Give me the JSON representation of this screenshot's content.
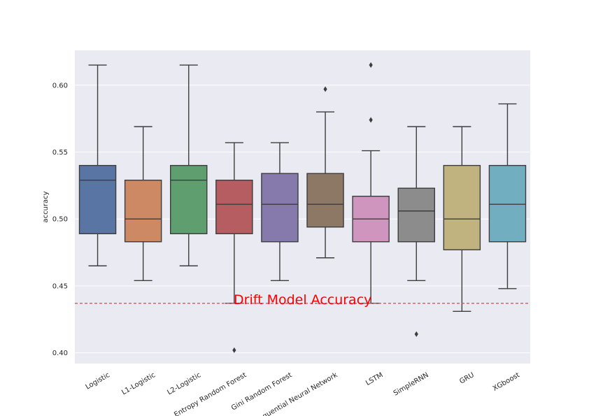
{
  "chart_data": {
    "type": "box",
    "ylabel": "accuracy",
    "ylim": [
      0.392,
      0.626
    ],
    "yticks": [
      {
        "value": 0.4,
        "label": "0.40"
      },
      {
        "value": 0.45,
        "label": "0.45"
      },
      {
        "value": 0.5,
        "label": "0.50"
      },
      {
        "value": 0.55,
        "label": "0.55"
      },
      {
        "value": 0.6,
        "label": "0.60"
      }
    ],
    "grid": true,
    "background": "#eaeaf2",
    "categories": [
      "Logistic",
      "L1-Logistic",
      "L2-Logistic",
      "Entropy Random Forest",
      "Gini Random Forest",
      "Sequential Neural Network",
      "LSTM",
      "SimpleRNN",
      "GRU",
      "XGboost"
    ],
    "boxes": [
      {
        "name": "Logistic",
        "color": "#5975a4",
        "whisker_low": 0.465,
        "q1": 0.489,
        "median": 0.529,
        "q3": 0.54,
        "whisker_high": 0.615,
        "outliers": []
      },
      {
        "name": "L1-Logistic",
        "color": "#cc8963",
        "whisker_low": 0.454,
        "q1": 0.483,
        "median": 0.5,
        "q3": 0.529,
        "whisker_high": 0.569,
        "outliers": []
      },
      {
        "name": "L2-Logistic",
        "color": "#5f9e6e",
        "whisker_low": 0.465,
        "q1": 0.489,
        "median": 0.529,
        "q3": 0.54,
        "whisker_high": 0.615,
        "outliers": []
      },
      {
        "name": "Entropy Random Forest",
        "color": "#b55d60",
        "whisker_low": 0.437,
        "q1": 0.489,
        "median": 0.511,
        "q3": 0.529,
        "whisker_high": 0.557,
        "outliers": [
          0.402
        ]
      },
      {
        "name": "Gini Random Forest",
        "color": "#857aab",
        "whisker_low": 0.454,
        "q1": 0.483,
        "median": 0.511,
        "q3": 0.534,
        "whisker_high": 0.557,
        "outliers": []
      },
      {
        "name": "Sequential Neural Network",
        "color": "#8d7866",
        "whisker_low": 0.471,
        "q1": 0.494,
        "median": 0.511,
        "q3": 0.534,
        "whisker_high": 0.58,
        "outliers": [
          0.597
        ]
      },
      {
        "name": "LSTM",
        "color": "#d095bf",
        "whisker_low": 0.437,
        "q1": 0.483,
        "median": 0.5,
        "q3": 0.517,
        "whisker_high": 0.551,
        "outliers": [
          0.574,
          0.615
        ]
      },
      {
        "name": "SimpleRNN",
        "color": "#8c8c8c",
        "whisker_low": 0.454,
        "q1": 0.483,
        "median": 0.506,
        "q3": 0.523,
        "whisker_high": 0.569,
        "outliers": [
          0.414
        ]
      },
      {
        "name": "GRU",
        "color": "#c1b37f",
        "whisker_low": 0.431,
        "q1": 0.477,
        "median": 0.5,
        "q3": 0.54,
        "whisker_high": 0.569,
        "outliers": []
      },
      {
        "name": "XGboost",
        "color": "#71aec0",
        "whisker_low": 0.448,
        "q1": 0.483,
        "median": 0.511,
        "q3": 0.54,
        "whisker_high": 0.586,
        "outliers": []
      }
    ],
    "reference_line": {
      "value": 0.437,
      "color": "#c44e52",
      "style": "dashed"
    },
    "annotation": {
      "text": "Drift Model Accuracy",
      "color": "#ff0000",
      "value": 0.437
    }
  }
}
